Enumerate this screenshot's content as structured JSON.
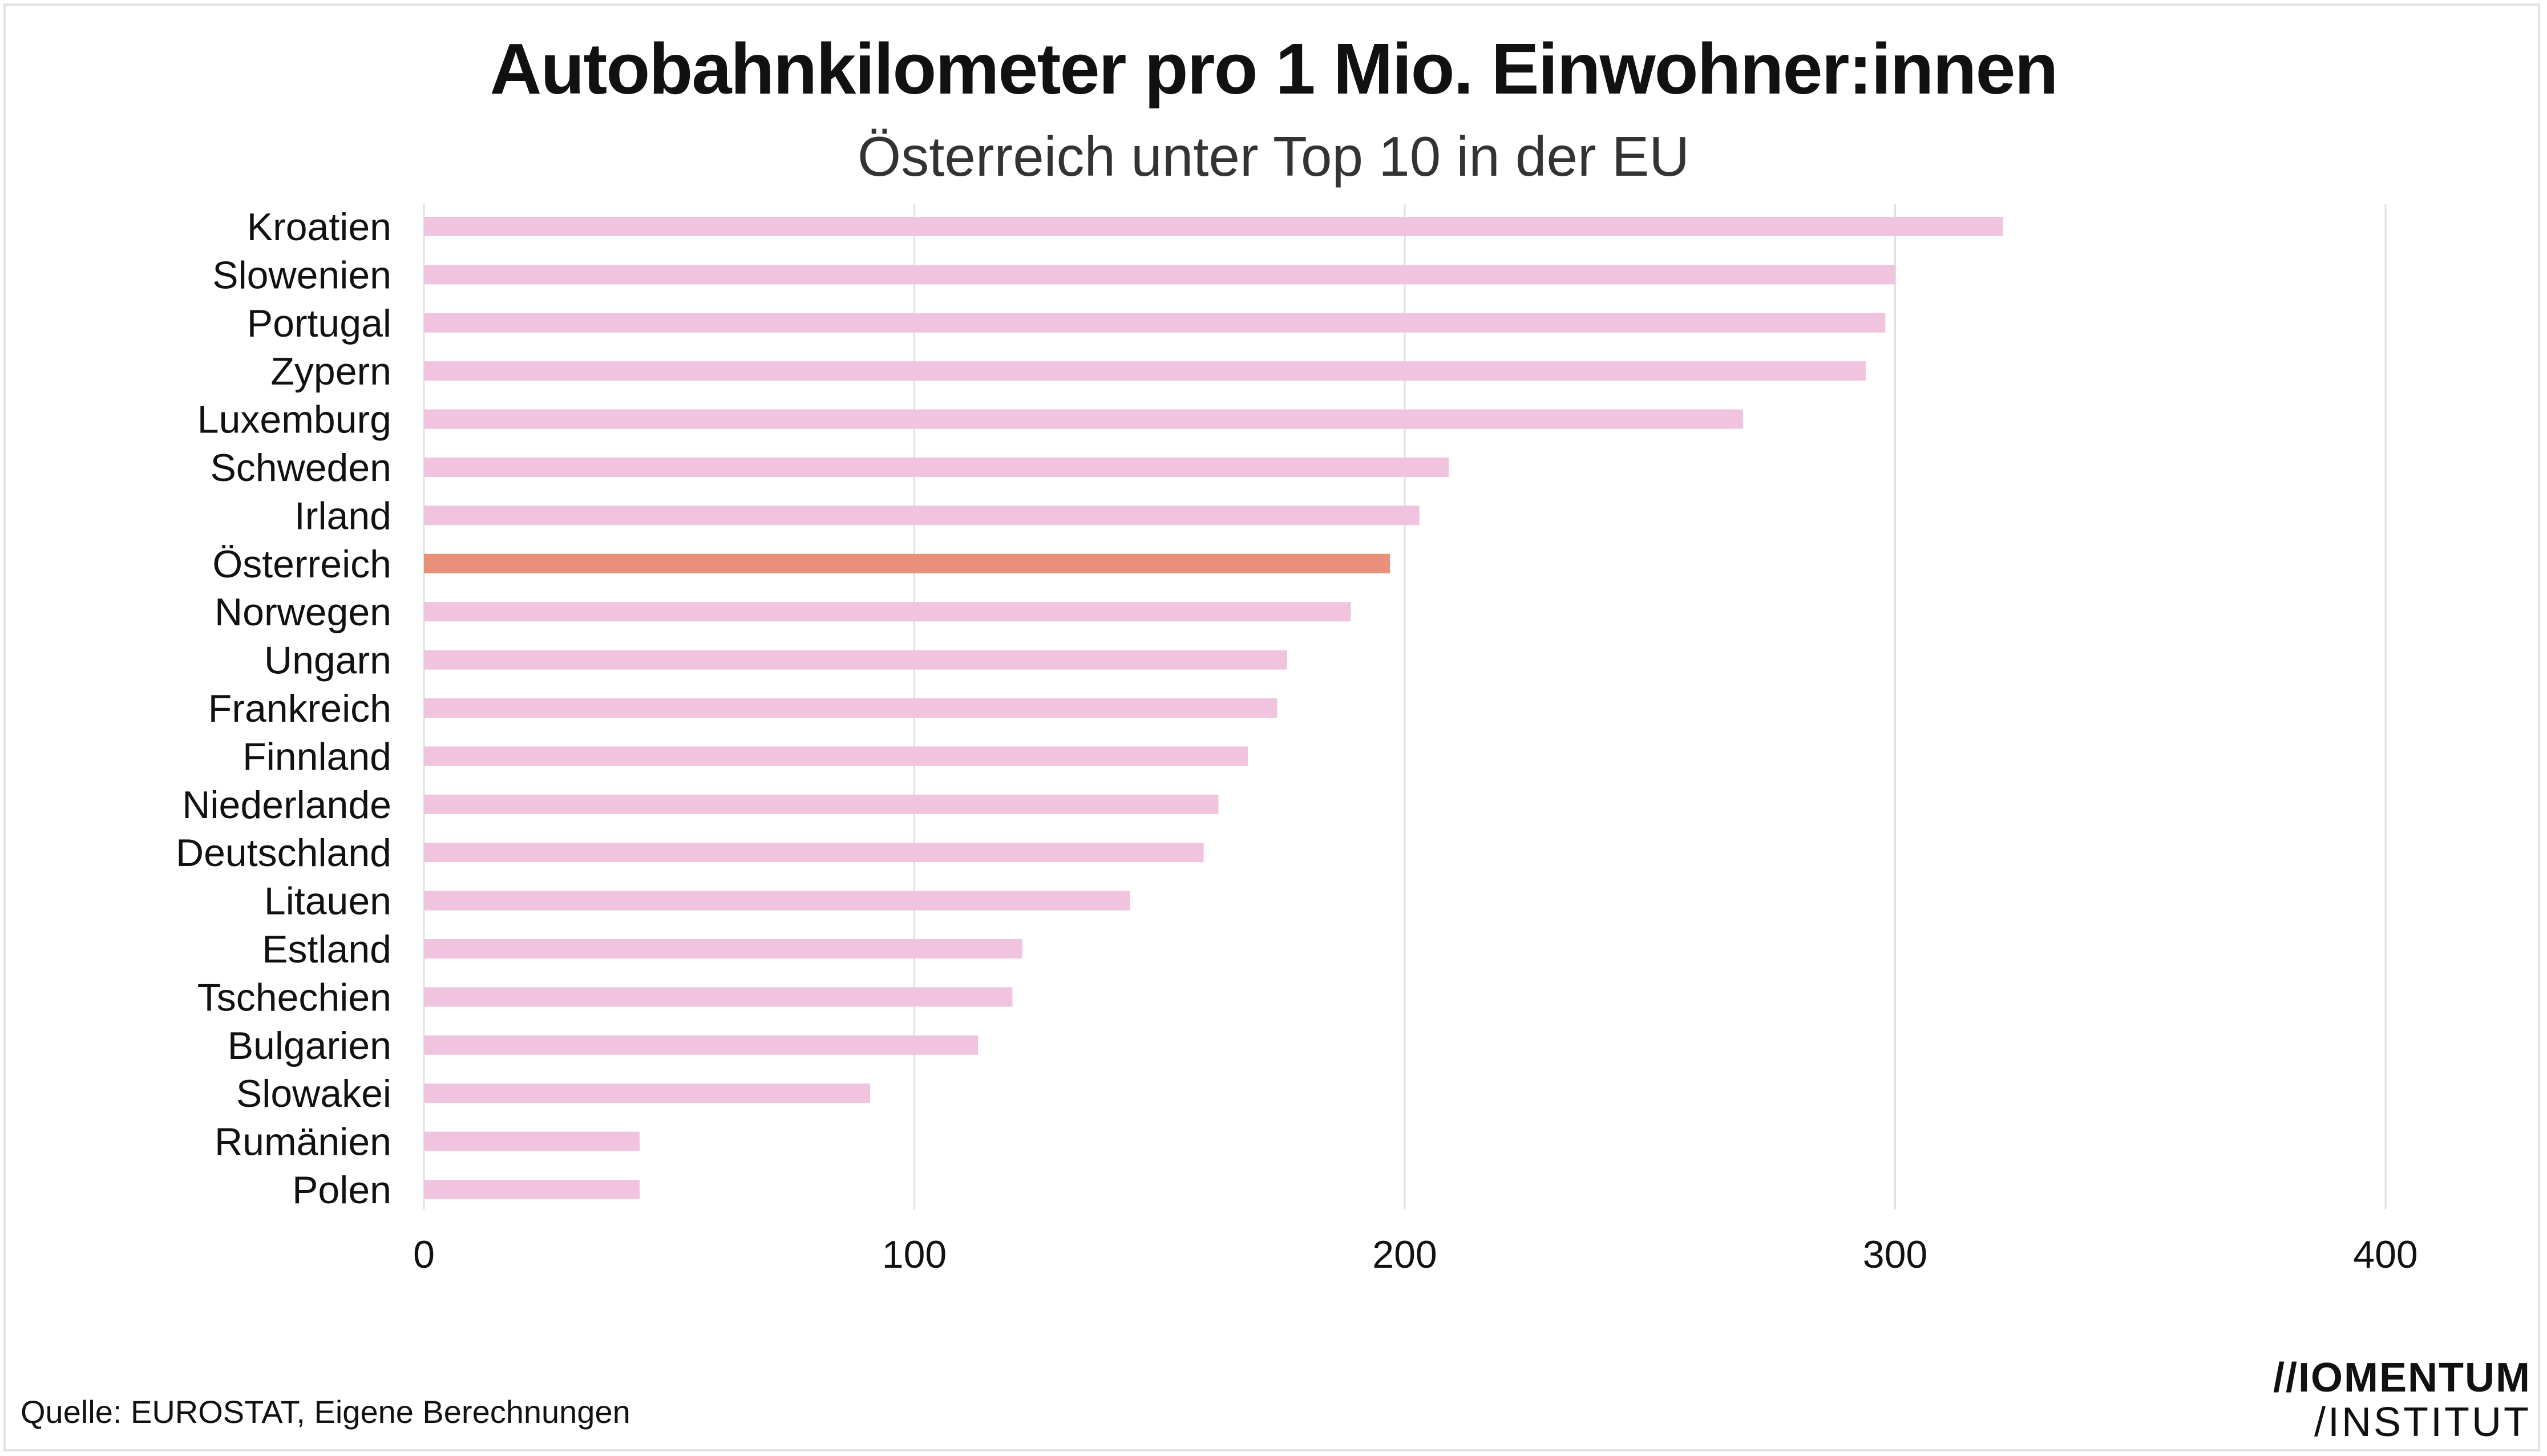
{
  "title": "Autobahnkilometer pro 1 Mio. Einwohner:innen",
  "subtitle": "Österreich unter Top 10 in der EU",
  "source": "Quelle: EUROSTAT, Eigene Berechnungen",
  "logo": {
    "line1": "//IOMENTUM",
    "line2": "/INSTITUT"
  },
  "colors": {
    "bar": "#f0c4de",
    "highlight": "#e8907a",
    "grid": "#e0e0e0",
    "text": "#111111"
  },
  "chart_data": {
    "type": "bar",
    "orientation": "horizontal",
    "categories": [
      "Kroatien",
      "Slowenien",
      "Portugal",
      "Zypern",
      "Luxemburg",
      "Schweden",
      "Irland",
      "Österreich",
      "Norwegen",
      "Ungarn",
      "Frankreich",
      "Finnland",
      "Niederlande",
      "Deutschland",
      "Litauen",
      "Estland",
      "Tschechien",
      "Bulgarien",
      "Slowakei",
      "Rumänien",
      "Polen"
    ],
    "values": [
      322,
      300,
      298,
      294,
      269,
      209,
      203,
      197,
      189,
      176,
      174,
      168,
      162,
      159,
      144,
      122,
      120,
      113,
      91,
      44,
      44
    ],
    "highlight": "Österreich",
    "xlim": [
      0,
      400
    ],
    "xticks": [
      0,
      100,
      200,
      300,
      400
    ],
    "grid": true,
    "legend": "none"
  }
}
